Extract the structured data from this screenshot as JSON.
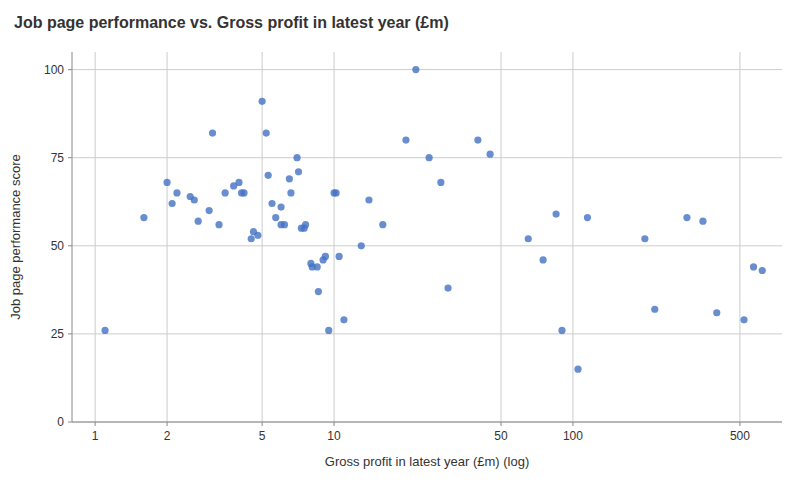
{
  "chart_data": {
    "type": "scatter",
    "title": "Job page performance vs. Gross profit in latest year (£m)",
    "xlabel": "Gross profit in latest year (£m) (log)",
    "ylabel": "Job page performance score",
    "color": "#4472C4",
    "log": "x",
    "grid": true,
    "xlim": [
      0.8,
      750
    ],
    "ylim": [
      0,
      105
    ],
    "xticks": [
      1,
      2,
      5,
      10,
      50,
      100,
      500
    ],
    "yticks": [
      0,
      25,
      50,
      75,
      100
    ],
    "x": [
      1.1,
      1.6,
      2.0,
      2.1,
      2.2,
      2.5,
      2.6,
      2.7,
      3.0,
      3.1,
      3.3,
      3.5,
      3.8,
      4.0,
      4.1,
      4.2,
      4.5,
      4.6,
      4.8,
      5.0,
      5.2,
      5.3,
      5.5,
      5.7,
      6.0,
      6.0,
      6.2,
      6.5,
      6.6,
      7.0,
      7.1,
      7.3,
      7.5,
      7.6,
      8.0,
      8.1,
      8.5,
      8.6,
      9.0,
      9.2,
      9.5,
      10.0,
      10.2,
      10.5,
      11.0,
      13.0,
      14.0,
      16.0,
      20.0,
      22.0,
      25.0,
      28.0,
      30.0,
      40.0,
      45.0,
      65.0,
      75.0,
      85.0,
      90.0,
      105.0,
      115.0,
      200.0,
      220.0,
      300.0,
      350.0,
      400.0,
      520.0,
      570.0,
      620.0
    ],
    "values": [
      26,
      58,
      68,
      62,
      65,
      64,
      63,
      57,
      60,
      82,
      56,
      65,
      67,
      68,
      65,
      65,
      52,
      54,
      53,
      91,
      82,
      70,
      62,
      58,
      56,
      61,
      56,
      69,
      65,
      75,
      71,
      55,
      55,
      56,
      45,
      44,
      44,
      37,
      46,
      47,
      26,
      65,
      65,
      47,
      29,
      50,
      63,
      56,
      80,
      100,
      75,
      68,
      38,
      80,
      76,
      52,
      46,
      59,
      26,
      15,
      58,
      52,
      32,
      58,
      57,
      31,
      29,
      44,
      43
    ]
  }
}
